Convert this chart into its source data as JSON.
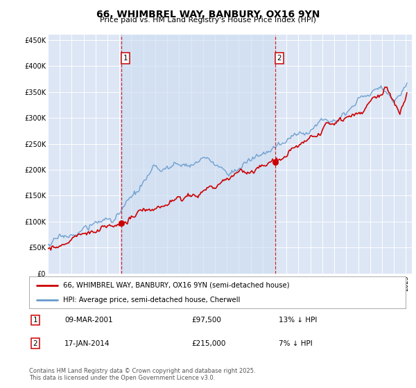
{
  "title": "66, WHIMBREL WAY, BANBURY, OX16 9YN",
  "subtitle": "Price paid vs. HM Land Registry's House Price Index (HPI)",
  "plot_bg_color": "#dce6f5",
  "highlight_bg_color": "#ccdcf0",
  "ylim": [
    0,
    460000
  ],
  "yticks": [
    0,
    50000,
    100000,
    150000,
    200000,
    250000,
    300000,
    350000,
    400000,
    450000
  ],
  "x_start_year": 1995,
  "x_end_year": 2025,
  "hpi_color": "#6699cc",
  "price_color": "#cc0000",
  "marker1_year": 2001.18,
  "marker1_price": 97500,
  "marker2_year": 2014.04,
  "marker2_price": 215000,
  "legend_line1": "66, WHIMBREL WAY, BANBURY, OX16 9YN (semi-detached house)",
  "legend_line2": "HPI: Average price, semi-detached house, Cherwell",
  "footer": "Contains HM Land Registry data © Crown copyright and database right 2025.\nThis data is licensed under the Open Government Licence v3.0.",
  "dashed_line_color": "#cc0000"
}
